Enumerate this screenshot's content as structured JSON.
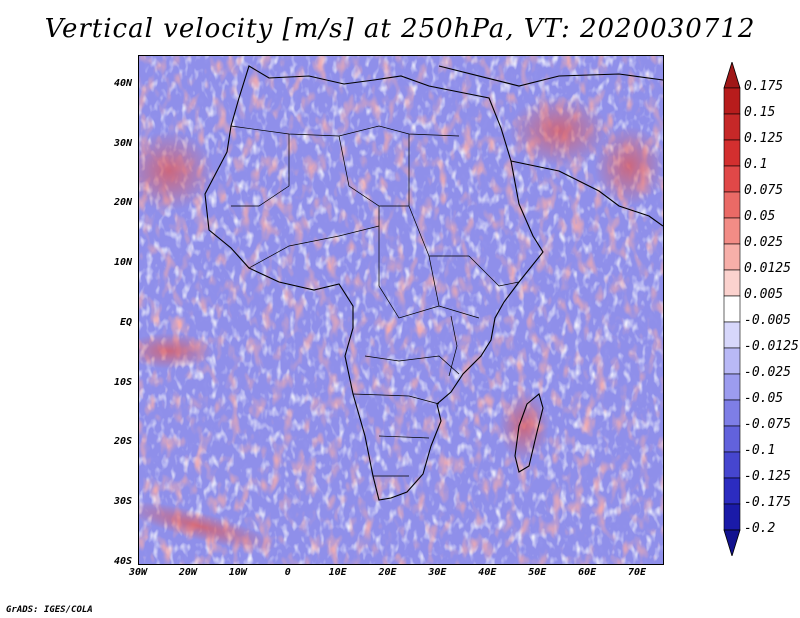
{
  "title": "Vertical velocity [m/s] at 250hPa, VT: 2020030712",
  "footer": "GrADS: IGES/COLA",
  "map": {
    "region": "Africa",
    "lon_range": [
      -30,
      75
    ],
    "lat_range": [
      -40,
      45
    ],
    "lat_ticks": [
      {
        "value": 40,
        "label": "40N"
      },
      {
        "value": 30,
        "label": "30N"
      },
      {
        "value": 20,
        "label": "20N"
      },
      {
        "value": 10,
        "label": "10N"
      },
      {
        "value": 0,
        "label": "EQ"
      },
      {
        "value": -10,
        "label": "10S"
      },
      {
        "value": -20,
        "label": "20S"
      },
      {
        "value": -30,
        "label": "30S"
      },
      {
        "value": -40,
        "label": "40S"
      }
    ],
    "lon_ticks": [
      {
        "value": -30,
        "label": "30W"
      },
      {
        "value": -20,
        "label": "20W"
      },
      {
        "value": -10,
        "label": "10W"
      },
      {
        "value": 0,
        "label": "0"
      },
      {
        "value": 10,
        "label": "10E"
      },
      {
        "value": 20,
        "label": "20E"
      },
      {
        "value": 30,
        "label": "30E"
      },
      {
        "value": 40,
        "label": "40E"
      },
      {
        "value": 50,
        "label": "50E"
      },
      {
        "value": 60,
        "label": "60E"
      },
      {
        "value": 70,
        "label": "70E"
      }
    ]
  },
  "colorbar": {
    "levels": [
      {
        "label": "0.175",
        "color": "#b71c1c"
      },
      {
        "label": "0.15",
        "color": "#c62828"
      },
      {
        "label": "0.125",
        "color": "#d32f2f"
      },
      {
        "label": "0.1",
        "color": "#e04848"
      },
      {
        "label": "0.075",
        "color": "#ea6a66"
      },
      {
        "label": "0.05",
        "color": "#f28c86"
      },
      {
        "label": "0.025",
        "color": "#f7afa9"
      },
      {
        "label": "0.0125",
        "color": "#fbd2ce"
      },
      {
        "label": "0.005",
        "color": "#ffffff"
      },
      {
        "label": "-0.005",
        "color": "#ffffff"
      },
      {
        "label": "-0.0125",
        "color": "#d7d7fb"
      },
      {
        "label": "-0.025",
        "color": "#b9b9f6"
      },
      {
        "label": "-0.05",
        "color": "#9c9cef"
      },
      {
        "label": "-0.075",
        "color": "#7e7ee6"
      },
      {
        "label": "-0.1",
        "color": "#6262dc"
      },
      {
        "label": "-0.125",
        "color": "#4646cf"
      },
      {
        "label": "-0.175",
        "color": "#2c2cc0"
      },
      {
        "label": "-0.2",
        "color": "#1a1aa8"
      }
    ],
    "top_arrow_color": "#a01818",
    "bottom_arrow_color": "#12128f"
  }
}
